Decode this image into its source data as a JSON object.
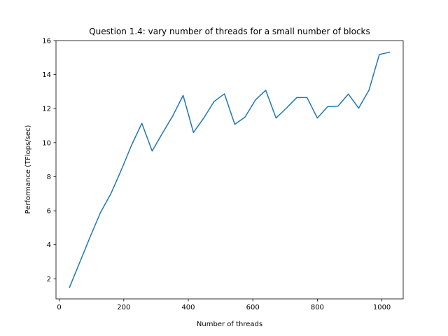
{
  "chart_data": {
    "type": "line",
    "title": "Question 1.4: vary number of threads for a small number of blocks",
    "xlabel": "Number of threads",
    "ylabel": "Performance (TFlops/sec)",
    "xlim": [
      -10,
      1066
    ],
    "ylim": [
      0.82,
      16.0
    ],
    "xticks": [
      0,
      200,
      400,
      600,
      800,
      1000
    ],
    "yticks": [
      2,
      4,
      6,
      8,
      10,
      12,
      14,
      16
    ],
    "grid": false,
    "series": [
      {
        "color": "#1f77b4",
        "x": [
          32,
          64,
          96,
          128,
          160,
          192,
          224,
          256,
          288,
          320,
          352,
          384,
          416,
          448,
          480,
          512,
          544,
          576,
          608,
          640,
          672,
          704,
          736,
          768,
          800,
          832,
          864,
          896,
          928,
          960,
          992,
          1024
        ],
        "y": [
          1.5,
          2.99,
          4.47,
          5.9,
          7.0,
          8.38,
          9.85,
          11.14,
          9.51,
          10.56,
          11.58,
          12.78,
          10.6,
          11.45,
          12.42,
          12.87,
          11.08,
          11.51,
          12.51,
          13.08,
          11.45,
          12.03,
          12.65,
          12.65,
          11.45,
          12.12,
          12.15,
          12.86,
          12.03,
          13.09,
          15.18,
          15.32
        ]
      }
    ]
  }
}
